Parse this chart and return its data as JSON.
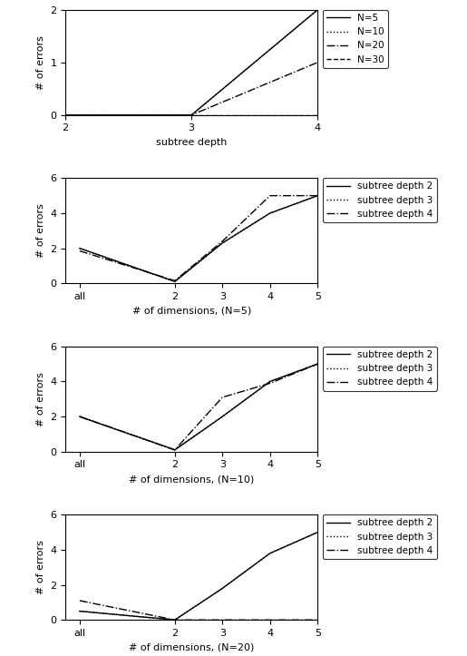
{
  "plot1": {
    "xlabel": "subtree depth",
    "ylabel": "# of errors",
    "xlim": [
      2,
      4
    ],
    "ylim": [
      0,
      2
    ],
    "yticks": [
      0,
      1,
      2
    ],
    "xticks": [
      2,
      3,
      4
    ],
    "lines": [
      {
        "label": "N=5",
        "x": [
          2,
          3,
          4
        ],
        "y": [
          0,
          0,
          2
        ],
        "style": "-",
        "color": "black",
        "lw": 1.0
      },
      {
        "label": "N=10",
        "x": [
          2,
          3,
          4
        ],
        "y": [
          0,
          0,
          2
        ],
        "style": ":",
        "color": "black",
        "lw": 1.0
      },
      {
        "label": "N=20",
        "x": [
          2,
          3,
          4
        ],
        "y": [
          0,
          0,
          1
        ],
        "style": "-.",
        "color": "black",
        "lw": 1.0
      },
      {
        "label": "N=30",
        "x": [
          2,
          3,
          4
        ],
        "y": [
          0,
          0,
          0
        ],
        "style": "--",
        "color": "black",
        "lw": 1.0
      }
    ]
  },
  "plot2": {
    "xlabel": "# of dimensions, (N=5)",
    "ylabel": "# of errors",
    "xlim": [
      -0.3,
      5
    ],
    "ylim": [
      0,
      6
    ],
    "yticks": [
      0,
      2,
      4,
      6
    ],
    "xtick_labels": [
      "all",
      "2",
      "3",
      "4",
      "5"
    ],
    "xtick_positions": [
      0,
      2,
      3,
      4,
      5
    ],
    "lines": [
      {
        "label": "subtree depth 2",
        "x": [
          0,
          2,
          3,
          4,
          5
        ],
        "y": [
          2.0,
          0.1,
          2.3,
          4.0,
          5.0
        ],
        "style": "-",
        "color": "black",
        "lw": 1.0
      },
      {
        "label": "subtree depth 3",
        "x": [
          0,
          2,
          3,
          4,
          5
        ],
        "y": [
          2.0,
          0.1,
          2.3,
          4.0,
          5.0
        ],
        "style": ":",
        "color": "black",
        "lw": 1.0
      },
      {
        "label": "subtree depth 4",
        "x": [
          0,
          2,
          3,
          4,
          5
        ],
        "y": [
          1.85,
          0.15,
          2.4,
          5.0,
          5.0
        ],
        "style": "-.",
        "color": "black",
        "lw": 1.0
      }
    ]
  },
  "plot3": {
    "xlabel": "# of dimensions, (N=10)",
    "ylabel": "# of errors",
    "xlim": [
      -0.3,
      5
    ],
    "ylim": [
      0,
      6
    ],
    "yticks": [
      0,
      2,
      4,
      6
    ],
    "xtick_labels": [
      "all",
      "2",
      "3",
      "4",
      "5"
    ],
    "xtick_positions": [
      0,
      2,
      3,
      4,
      5
    ],
    "lines": [
      {
        "label": "subtree depth 2",
        "x": [
          0,
          2,
          3,
          4,
          5
        ],
        "y": [
          2.0,
          0.1,
          2.0,
          4.0,
          5.0
        ],
        "style": "-",
        "color": "black",
        "lw": 1.0
      },
      {
        "label": "subtree depth 3",
        "x": [
          0,
          2,
          3,
          4,
          5
        ],
        "y": [
          2.0,
          0.1,
          2.0,
          4.0,
          5.0
        ],
        "style": ":",
        "color": "black",
        "lw": 1.0
      },
      {
        "label": "subtree depth 4",
        "x": [
          0,
          2,
          3,
          4,
          5
        ],
        "y": [
          2.0,
          0.1,
          3.1,
          3.9,
          5.0
        ],
        "style": "-.",
        "color": "black",
        "lw": 1.0
      }
    ]
  },
  "plot4": {
    "xlabel": "# of dimensions, (N=20)",
    "ylabel": "# of errors",
    "xlim": [
      -0.3,
      5
    ],
    "ylim": [
      0,
      6
    ],
    "yticks": [
      0,
      2,
      4,
      6
    ],
    "xtick_labels": [
      "all",
      "2",
      "3",
      "4",
      "5"
    ],
    "xtick_positions": [
      0,
      2,
      3,
      4,
      5
    ],
    "lines": [
      {
        "label": "subtree depth 2",
        "x": [
          0,
          2,
          3,
          4,
          5
        ],
        "y": [
          0.5,
          0.0,
          1.8,
          3.8,
          5.0
        ],
        "style": "-",
        "color": "black",
        "lw": 1.0
      },
      {
        "label": "subtree depth 3",
        "x": [
          0,
          2,
          3,
          4,
          5
        ],
        "y": [
          0.5,
          0.0,
          1.8,
          3.8,
          5.0
        ],
        "style": ":",
        "color": "black",
        "lw": 1.0
      },
      {
        "label": "subtree depth 4",
        "x": [
          0,
          2,
          3,
          4,
          5
        ],
        "y": [
          1.1,
          0.0,
          0.0,
          0.0,
          0.0
        ],
        "style": "-.",
        "color": "black",
        "lw": 1.0
      }
    ]
  }
}
